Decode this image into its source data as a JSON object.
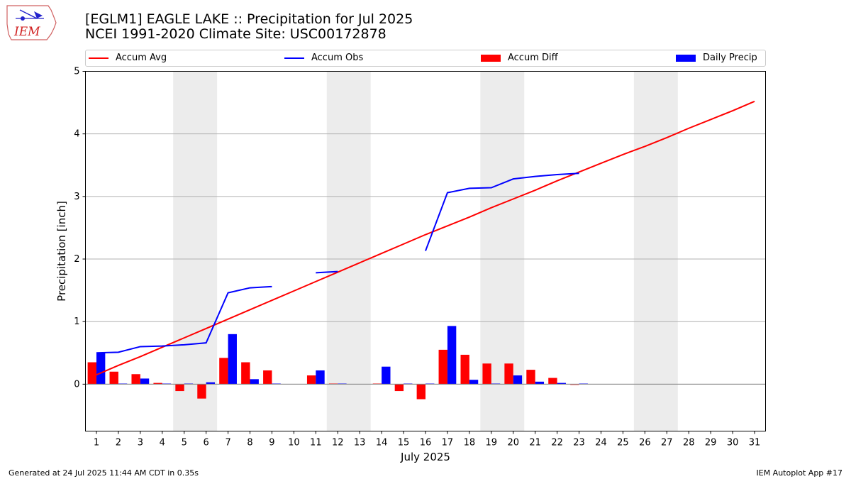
{
  "header": {
    "logo_text": "IEM",
    "title_line1": "[EGLM1] EAGLE LAKE :: Precipitation for Jul 2025",
    "title_line2": "NCEI 1991-2020 Climate Site: USC00172878"
  },
  "footer": {
    "left": "Generated at 24 Jul 2025 11:44 AM CDT in 0.35s",
    "right": "IEM Autoplot App #17"
  },
  "colors": {
    "avg": "#ff0000",
    "obs": "#0000ff",
    "diff": "#ff0000",
    "daily": "#0000ff",
    "weekend": "#ececec",
    "grid": "#b0b0b0"
  },
  "chart_data": {
    "type": "bar",
    "title": "[EGLM1] EAGLE LAKE :: Precipitation for Jul 2025",
    "subtitle": "NCEI 1991-2020 Climate Site: USC00172878",
    "xlabel": "July 2025",
    "ylabel": "Precipitation [inch]",
    "ylim": [
      -0.75,
      5.0
    ],
    "xlim": [
      0.5,
      31.5
    ],
    "y_ticks": [
      0,
      1,
      2,
      3,
      4,
      5
    ],
    "x": [
      1,
      2,
      3,
      4,
      5,
      6,
      7,
      8,
      9,
      10,
      11,
      12,
      13,
      14,
      15,
      16,
      17,
      18,
      19,
      20,
      21,
      22,
      23,
      24,
      25,
      26,
      27,
      28,
      29,
      30,
      31
    ],
    "x_tick_labels": [
      "1",
      "2",
      "3",
      "4",
      "5",
      "6",
      "7",
      "8",
      "9",
      "10",
      "11",
      "12",
      "13",
      "14",
      "15",
      "16",
      "17",
      "18",
      "19",
      "20",
      "21",
      "22",
      "23",
      "24",
      "25",
      "26",
      "27",
      "28",
      "29",
      "30",
      "31"
    ],
    "weekend_days": [
      5,
      6,
      12,
      13,
      19,
      20,
      26,
      27
    ],
    "grid": true,
    "legend_placement": "top",
    "series": [
      {
        "name": "Accum Avg",
        "kind": "line",
        "values": [
          0.15,
          0.3,
          0.44,
          0.59,
          0.74,
          0.89,
          1.04,
          1.19,
          1.34,
          1.49,
          1.64,
          1.79,
          1.94,
          2.09,
          2.24,
          2.39,
          2.53,
          2.67,
          2.82,
          2.96,
          3.1,
          3.25,
          3.39,
          3.53,
          3.67,
          3.8,
          3.94,
          4.09,
          4.23,
          4.37,
          4.52
        ]
      },
      {
        "name": "Accum Obs",
        "kind": "line",
        "values": [
          0.5,
          0.51,
          0.6,
          0.61,
          0.63,
          0.66,
          1.46,
          1.54,
          1.56,
          null,
          1.78,
          1.8,
          null,
          2.1,
          null,
          2.13,
          3.06,
          3.13,
          3.14,
          3.28,
          3.32,
          3.35,
          3.37,
          null,
          null,
          null,
          null,
          null,
          null,
          null,
          null
        ]
      },
      {
        "name": "Accum Diff",
        "kind": "bar",
        "values": [
          0.35,
          0.2,
          0.16,
          0.02,
          -0.11,
          -0.23,
          0.42,
          0.35,
          0.22,
          null,
          0.14,
          0.01,
          null,
          0.01,
          -0.11,
          -0.24,
          0.55,
          0.47,
          0.33,
          0.33,
          0.23,
          0.1,
          -0.01,
          null,
          null,
          null,
          null,
          null,
          null,
          null,
          null
        ]
      },
      {
        "name": "Daily Precip",
        "kind": "bar",
        "values": [
          0.5,
          0.01,
          0.09,
          0.01,
          0.01,
          0.03,
          0.8,
          0.08,
          0.01,
          null,
          0.22,
          0.01,
          null,
          0.28,
          0.01,
          0.01,
          0.93,
          0.07,
          0.01,
          0.14,
          0.04,
          0.02,
          0.01,
          null,
          null,
          null,
          null,
          null,
          null,
          null,
          null
        ]
      }
    ]
  }
}
